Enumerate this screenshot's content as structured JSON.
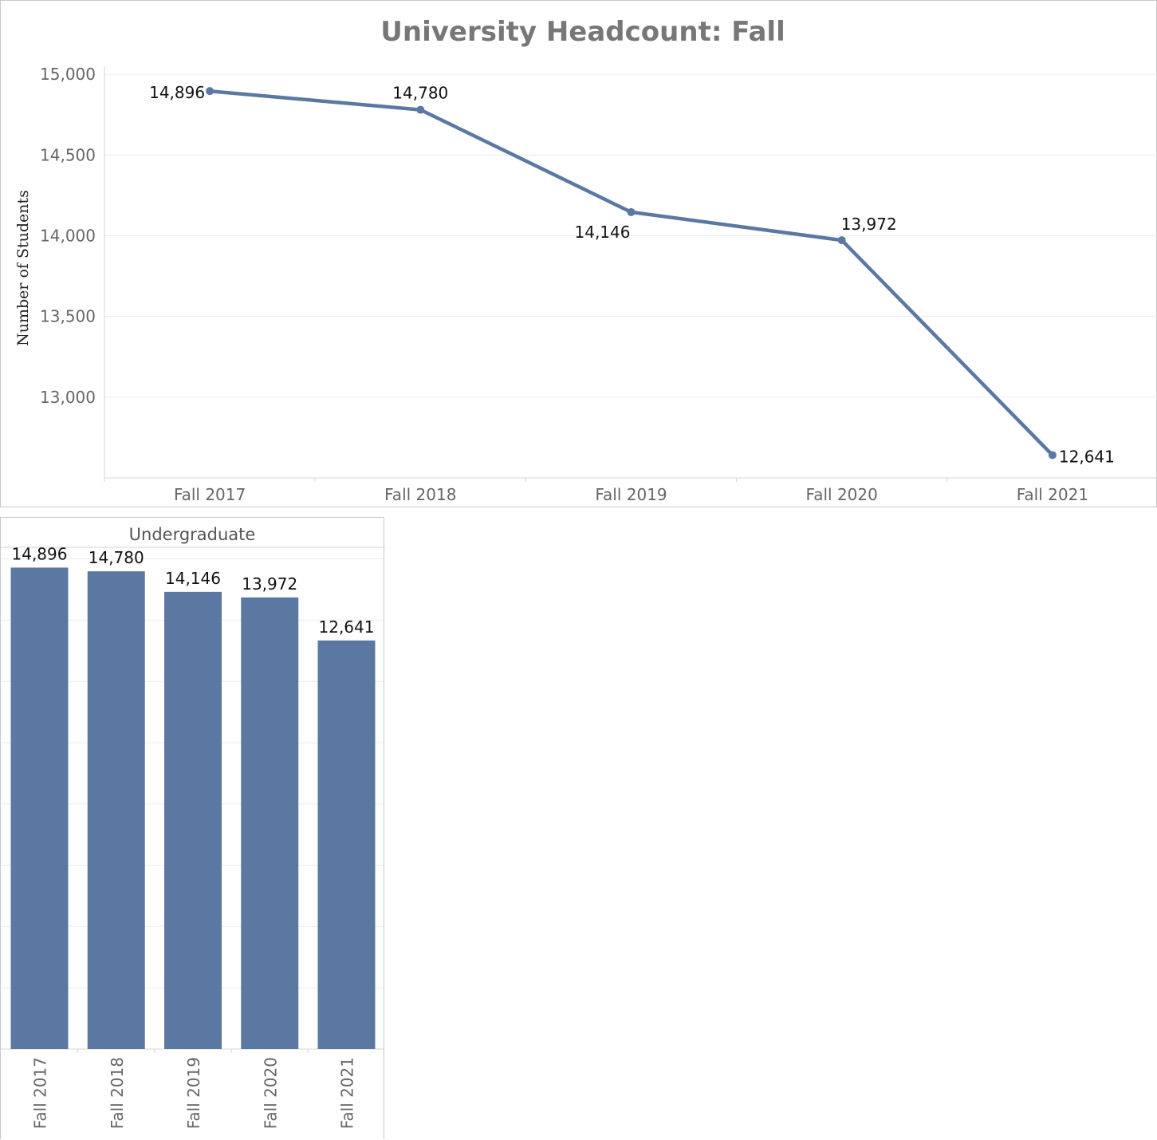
{
  "chart_data": [
    {
      "type": "line",
      "title": "University Headcount: Fall",
      "ylabel": "Number of Students",
      "xlabel": "",
      "categories": [
        "Fall 2017",
        "Fall 2018",
        "Fall 2019",
        "Fall 2020",
        "Fall 2021"
      ],
      "values": [
        14896,
        14780,
        14146,
        13972,
        12641
      ],
      "data_labels": [
        "14,896",
        "14,780",
        "14,146",
        "13,972",
        "12,641"
      ],
      "y_ticks": [
        13000,
        13500,
        14000,
        14500,
        15000
      ],
      "y_tick_labels": [
        "13,000",
        "13,500",
        "14,000",
        "14,500",
        "15,000"
      ],
      "ylim": [
        12500,
        15050
      ],
      "grid": true,
      "legend": "none",
      "line_color": "#5b78a3"
    },
    {
      "type": "bar",
      "title": "",
      "panel_header": "Undergraduate",
      "categories": [
        "Fall 2017",
        "Fall 2018",
        "Fall 2019",
        "Fall 2020",
        "Fall 2021"
      ],
      "values": [
        14896,
        14780,
        14146,
        13972,
        12641
      ],
      "data_labels": [
        "14,896",
        "14,780",
        "14,146",
        "13,972",
        "12,641"
      ],
      "ylim": [
        0,
        15500
      ],
      "grid": true,
      "legend": "none",
      "bar_color": "#5b78a3"
    }
  ]
}
